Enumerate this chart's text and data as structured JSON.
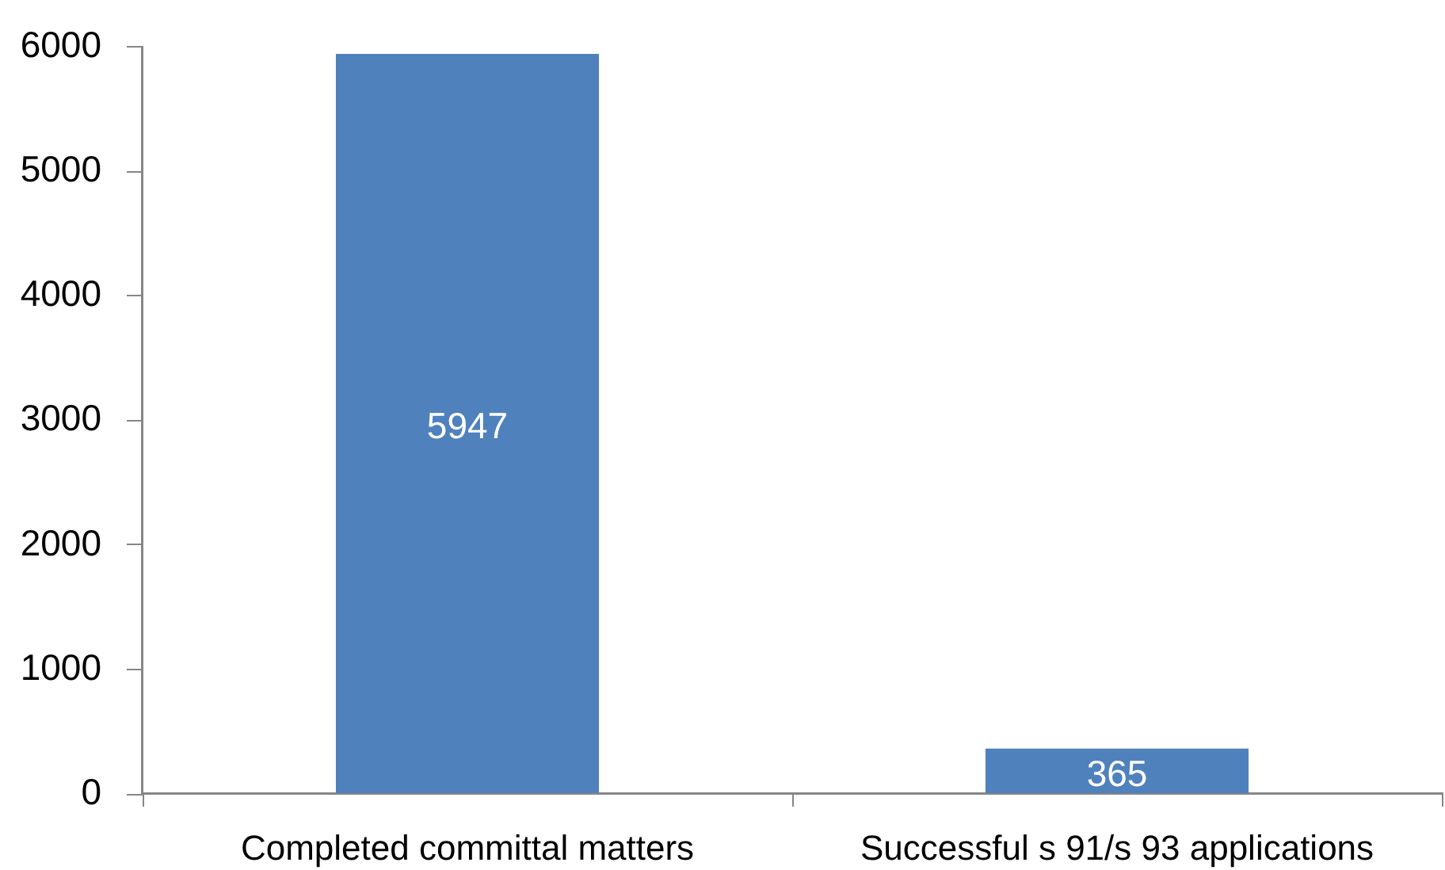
{
  "chart_data": {
    "type": "bar",
    "categories": [
      "Completed committal matters",
      "Successful s 91/s 93 applications"
    ],
    "values": [
      5947,
      365
    ],
    "color": "#4f81bd",
    "ylim": [
      0,
      6000
    ],
    "yticks": [
      0,
      1000,
      2000,
      3000,
      4000,
      5000,
      6000
    ],
    "data_labels": true
  }
}
